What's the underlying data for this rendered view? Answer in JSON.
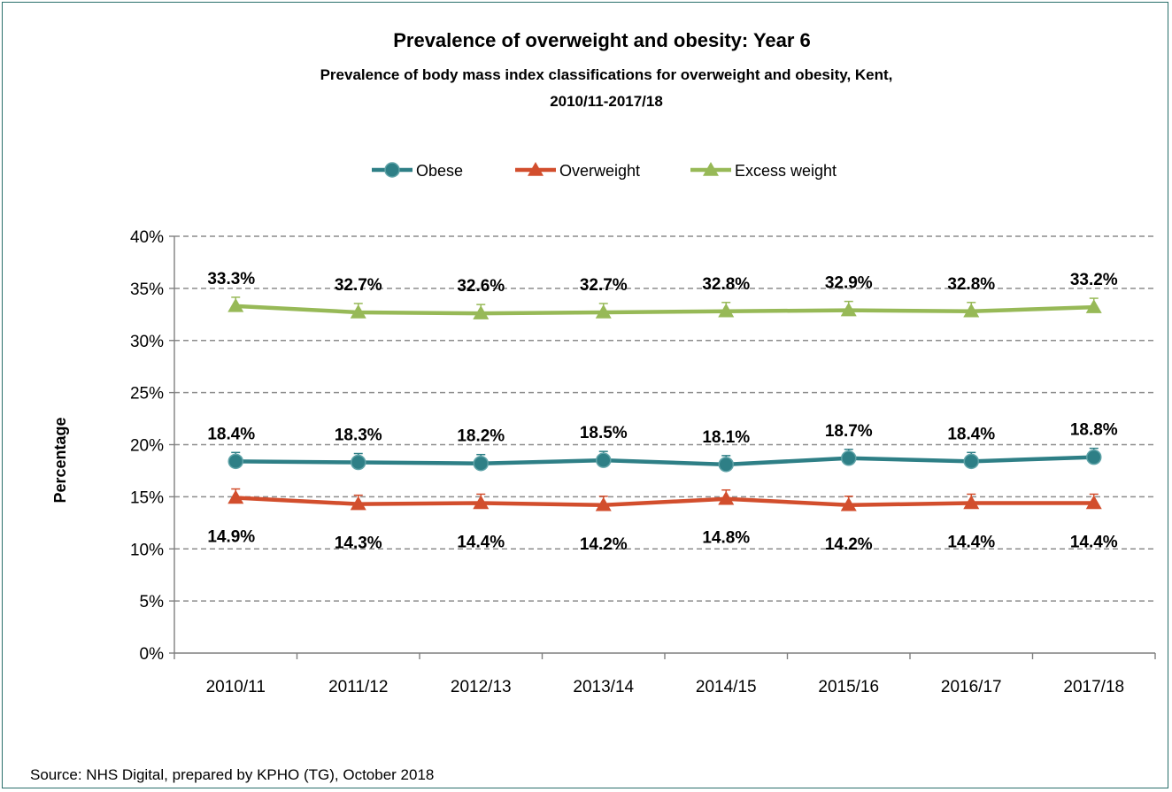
{
  "chart_data": {
    "type": "line",
    "title": "Prevalence of overweight and obesity: Year 6",
    "subtitle_line1": "Prevalence of body mass index classifications for overweight and obesity, Kent,",
    "subtitle_line2": "2010/11-2017/18",
    "ylabel": "Percentage",
    "xlabel": "",
    "ylim": [
      0,
      40
    ],
    "y_ticks": [
      0,
      5,
      10,
      15,
      20,
      25,
      30,
      35,
      40
    ],
    "y_tick_labels": [
      "0%",
      "5%",
      "10%",
      "15%",
      "20%",
      "25%",
      "30%",
      "35%",
      "40%"
    ],
    "grid": "horizontal-dashed",
    "legend_position": "top",
    "categories": [
      "2010/11",
      "2011/12",
      "2012/13",
      "2013/14",
      "2014/15",
      "2015/16",
      "2016/17",
      "2017/18"
    ],
    "series": [
      {
        "name": "Obese",
        "color": "#2e7f86",
        "marker": "circle",
        "values": [
          18.4,
          18.3,
          18.2,
          18.5,
          18.1,
          18.7,
          18.4,
          18.8
        ],
        "labels": [
          "18.4%",
          "18.3%",
          "18.2%",
          "18.5%",
          "18.1%",
          "18.7%",
          "18.4%",
          "18.8%"
        ],
        "label_position": "above"
      },
      {
        "name": "Overweight",
        "color": "#d24e2d",
        "marker": "triangle",
        "values": [
          14.9,
          14.3,
          14.4,
          14.2,
          14.8,
          14.2,
          14.4,
          14.4
        ],
        "labels": [
          "14.9%",
          "14.3%",
          "14.4%",
          "14.2%",
          "14.8%",
          "14.2%",
          "14.4%",
          "14.4%"
        ],
        "label_position": "below"
      },
      {
        "name": "Excess weight",
        "color": "#97b957",
        "marker": "triangle",
        "values": [
          33.3,
          32.7,
          32.6,
          32.7,
          32.8,
          32.9,
          32.8,
          33.2
        ],
        "labels": [
          "33.3%",
          "32.7%",
          "32.6%",
          "32.7%",
          "32.8%",
          "32.9%",
          "32.8%",
          "33.2%"
        ],
        "label_position": "above"
      }
    ]
  },
  "source": "Source: NHS Digital, prepared by KPHO (TG), October 2018"
}
